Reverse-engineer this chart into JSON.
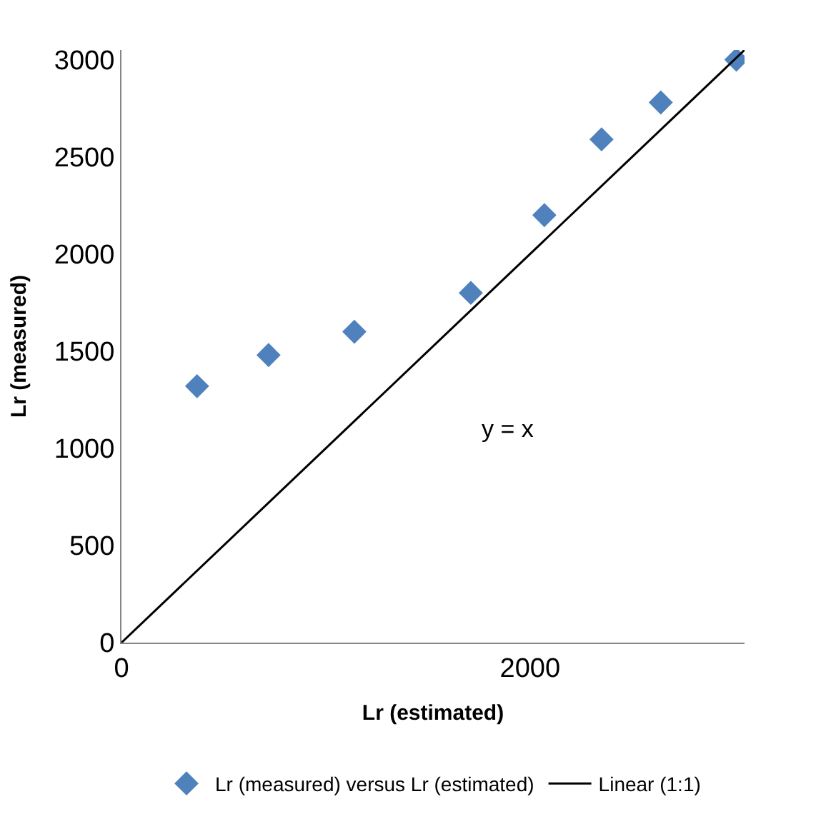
{
  "chart_data": {
    "type": "scatter",
    "xlabel": "Lr (estimated)",
    "ylabel": "Lr (measured)",
    "annotations": [
      "y = x"
    ],
    "series": [
      {
        "name": "Lr (measured) versus Lr (estimated)",
        "color": "#4f81bd",
        "marker": "diamond",
        "x": [
          370,
          720,
          1140,
          1710,
          2070,
          2350,
          2640,
          3010
        ],
        "values": [
          1320,
          1480,
          1600,
          1800,
          2200,
          2590,
          2780,
          3000
        ]
      },
      {
        "name": "Linear (1:1)",
        "type": "line",
        "color": "#000000",
        "marker": "none",
        "x": [
          0,
          3050
        ],
        "values": [
          0,
          3050
        ]
      }
    ],
    "xlim": [
      0,
      3050
    ],
    "xticks": [
      0,
      2000
    ],
    "ylim": [
      0,
      3050
    ],
    "yticks": [
      0,
      500,
      1000,
      1500,
      2000,
      2500,
      3000
    ],
    "legend": "bottom"
  }
}
